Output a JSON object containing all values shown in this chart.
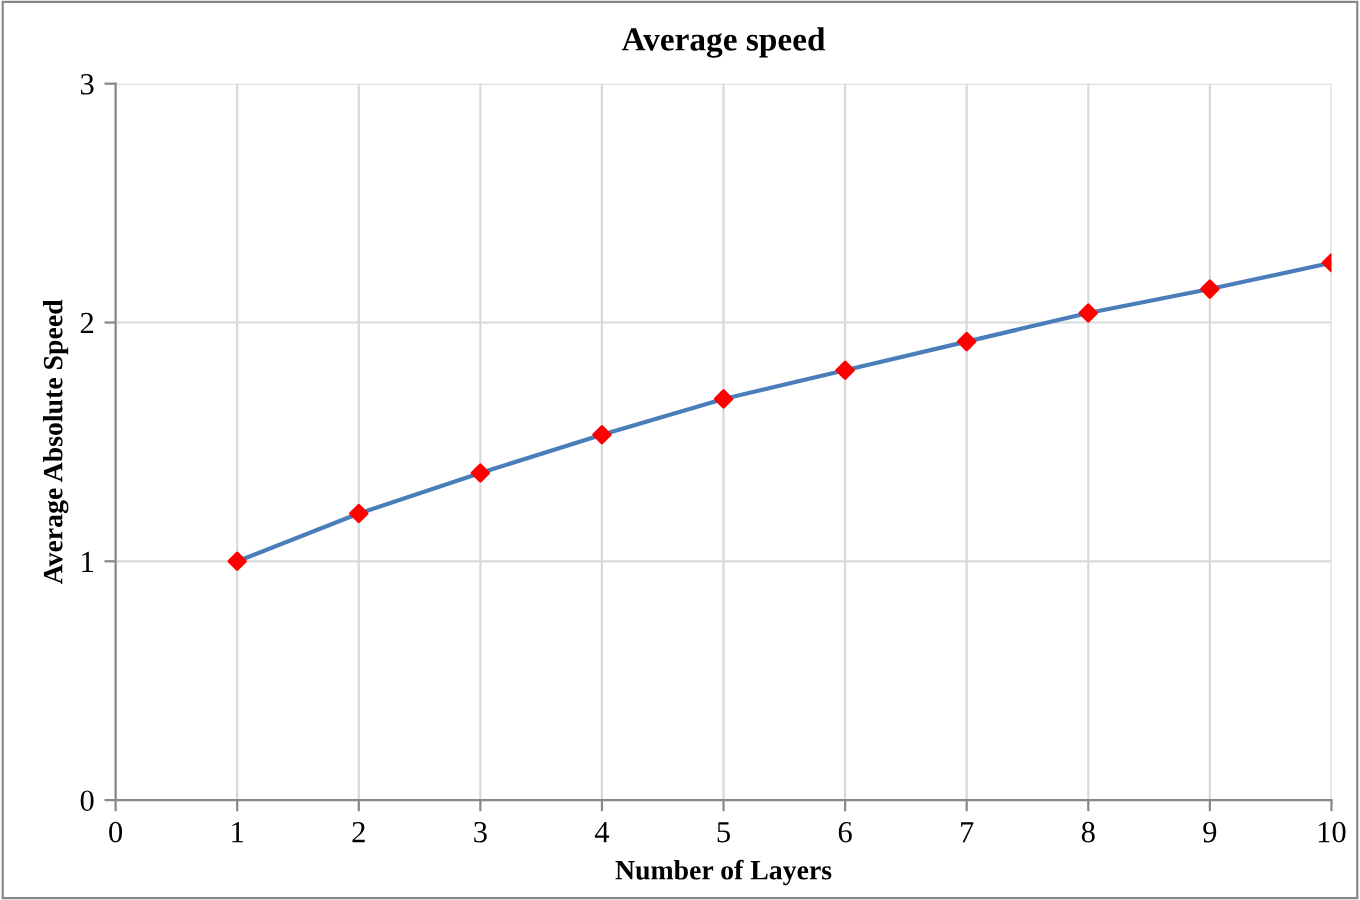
{
  "chart_data": {
    "type": "line",
    "title": "Average speed",
    "xlabel": "Number of Layers",
    "ylabel": "Average Absolute Speed",
    "x": [
      1,
      2,
      3,
      4,
      5,
      6,
      7,
      8,
      9,
      10
    ],
    "series": [
      {
        "color": "#4a7ebb",
        "colors": [
          "#ff0000",
          "#ff0000",
          "#ff0000",
          "#ff0000",
          "#ff0000",
          "#ff0000",
          "#ff0000",
          "#ff0000",
          "#ff0000",
          "#ff0000"
        ],
        "values": [
          1.0,
          1.2,
          1.37,
          1.53,
          1.68,
          1.8,
          1.92,
          2.04,
          2.14,
          2.25
        ]
      }
    ],
    "xlim": [
      0,
      10
    ],
    "xticks": [
      0,
      1,
      2,
      3,
      4,
      5,
      6,
      7,
      8,
      9,
      10
    ],
    "ylim": [
      0,
      3
    ],
    "yticks": [
      0,
      1,
      2,
      3
    ],
    "grid": true,
    "marker": "diamond",
    "line_style": "solid",
    "legend": false
  }
}
